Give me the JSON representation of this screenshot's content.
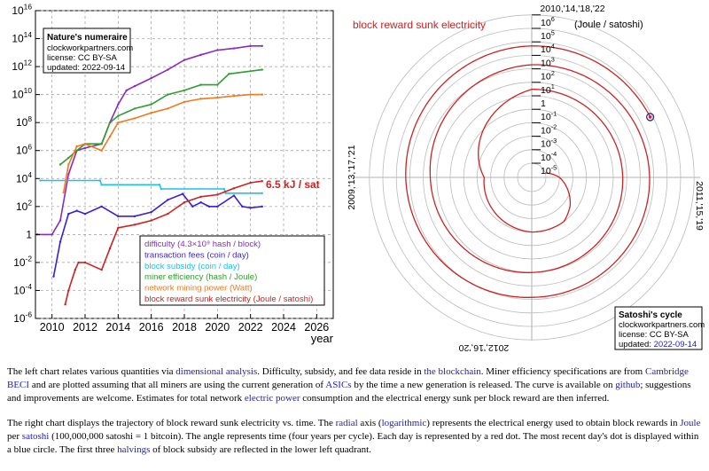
{
  "chart_data": [
    {
      "type": "line",
      "title": "",
      "xlabel": "year",
      "ylabel": "",
      "xlim": [
        2009,
        2027
      ],
      "ylim": [
        1e-06,
        1e+16
      ],
      "y_scale": "log",
      "x_ticks": [
        "2010",
        "2012",
        "2014",
        "2016",
        "2018",
        "2020",
        "2022",
        "2024",
        "2026"
      ],
      "y_ticks": [
        {
          "base": "10",
          "exp": "16"
        },
        {
          "base": "10",
          "exp": "14"
        },
        {
          "base": "10",
          "exp": "12"
        },
        {
          "base": "10",
          "exp": "10"
        },
        {
          "base": "10",
          "exp": "8"
        },
        {
          "base": "10",
          "exp": "6"
        },
        {
          "base": "10",
          "exp": "4"
        },
        {
          "base": "10",
          "exp": "2"
        },
        {
          "base": "1",
          "exp": ""
        },
        {
          "base": "10",
          "exp": "-2"
        },
        {
          "base": "10",
          "exp": "-4"
        },
        {
          "base": "10",
          "exp": "-6"
        }
      ],
      "grid": true,
      "annotation": "6.5 kJ / sat",
      "legend_position": "bottom-right",
      "series": [
        {
          "name": "difficulty (4.3×10⁹ hash / block)",
          "color": "#8a2bbb",
          "x": [
            2009.1,
            2010.0,
            2010.5,
            2011.0,
            2011.5,
            2012.0,
            2013.0,
            2013.5,
            2014.0,
            2014.5,
            2015.0,
            2016.0,
            2017.0,
            2018.0,
            2019.0,
            2020.0,
            2021.0,
            2022.0,
            2022.7
          ],
          "y": [
            1,
            1,
            10,
            20000.0,
            1000000.0,
            1500000.0,
            3000000.0,
            100000000.0,
            2000000000.0,
            20000000000.0,
            40000000000.0,
            150000000000.0,
            600000000000.0,
            3000000000000.0,
            7000000000000.0,
            15000000000000.0,
            20000000000000.0,
            30000000000000.0,
            30000000000000.0
          ]
        },
        {
          "name": "transaction fees (coin / day)",
          "color": "#3a1fd6",
          "x": [
            2010.1,
            2010.5,
            2011.0,
            2011.5,
            2012.0,
            2013.0,
            2014.0,
            2015.0,
            2016.0,
            2017.0,
            2017.9,
            2018.5,
            2019.0,
            2019.5,
            2020.0,
            2021.0,
            2021.5,
            2022.0,
            2022.7
          ],
          "y": [
            0.001,
            0.3,
            30,
            50,
            30,
            100,
            20,
            20,
            40,
            300,
            800,
            100,
            200,
            100,
            100,
            600,
            100,
            80,
            100
          ]
        },
        {
          "name": "block subsidy (coin / day)",
          "color": "#1fbfee",
          "x": [
            2009.3,
            2012.9,
            2013.0,
            2016.5,
            2016.6,
            2020.4,
            2020.5,
            2022.7
          ],
          "y": [
            7200,
            7200,
            3600,
            3600,
            1800,
            1800,
            900,
            900
          ]
        },
        {
          "name": "miner efficiency (hash / Joule)",
          "color": "#2e9e2e",
          "x": [
            2010.5,
            2011.0,
            2011.5,
            2012.0,
            2013.0,
            2013.5,
            2014.0,
            2015.0,
            2016.0,
            2017.0,
            2018.0,
            2019.0,
            2020.0,
            2020.7,
            2022.7
          ],
          "y": [
            100000.0,
            300000.0,
            1000000.0,
            3000000.0,
            3000000.0,
            100000000.0,
            300000000.0,
            1000000000.0,
            2000000000.0,
            10000000000.0,
            20000000000.0,
            50000000000.0,
            50000000000.0,
            300000000000.0,
            600000000000.0
          ]
        },
        {
          "name": "network mining power (Watt)",
          "color": "#ef7a1f",
          "x": [
            2010.7,
            2011.0,
            2011.5,
            2012.0,
            2013.0,
            2013.5,
            2014.0,
            2015.0,
            2016.0,
            2017.0,
            2018.0,
            2019.0,
            2020.0,
            2021.0,
            2022.0,
            2022.7
          ],
          "y": [
            1000.0,
            100000.0,
            2000000.0,
            3000000.0,
            1000000.0,
            10000000.0,
            100000000.0,
            200000000.0,
            500000000.0,
            1000000000.0,
            3000000000.0,
            5000000000.0,
            6000000000.0,
            8000000000.0,
            10000000000.0,
            10000000000.0
          ]
        },
        {
          "name": "block reward sunk electricity (Joule / satoshi)",
          "color": "#cc2222",
          "x": [
            2010.8,
            2011.0,
            2011.4,
            2011.6,
            2012.0,
            2013.0,
            2013.5,
            2014.0,
            2015.0,
            2016.0,
            2017.0,
            2018.0,
            2019.0,
            2020.0,
            2021.0,
            2022.0,
            2022.7
          ],
          "y": [
            1e-05,
            0.0001,
            0.003,
            0.01,
            0.01,
            0.003,
            0.1,
            3,
            5,
            10,
            30,
            200,
            500,
            700,
            2000,
            5000,
            6500
          ]
        }
      ],
      "info_box": {
        "title": "Nature's numeraire",
        "lines": [
          "clockworkpartners.com",
          "license: CC BY-SA",
          "updated: 2022-09-14"
        ]
      }
    },
    {
      "type": "line",
      "projection": "polar",
      "title": "block reward sunk electricity",
      "radial_unit": "(Joule / satoshi)",
      "radial_scale": "log",
      "radial_ticks": [
        {
          "base": "10",
          "exp": "6"
        },
        {
          "base": "10",
          "exp": "5"
        },
        {
          "base": "10",
          "exp": "4"
        },
        {
          "base": "10",
          "exp": "3"
        },
        {
          "base": "10",
          "exp": "2"
        },
        {
          "base": "10",
          "exp": "1"
        },
        {
          "base": "1",
          "exp": ""
        },
        {
          "base": "10",
          "exp": "-1"
        },
        {
          "base": "10",
          "exp": "-2"
        },
        {
          "base": "10",
          "exp": "-3"
        },
        {
          "base": "10",
          "exp": "-4"
        },
        {
          "base": "10",
          "exp": "-5"
        }
      ],
      "angle_labels": {
        "top": "2010,'14,'18,'22",
        "right": "2011,'15,'19",
        "bottom": "2012,'16,'20",
        "left": "2009,'13,'17,'21"
      },
      "series_color": "#cc2222",
      "latest_marker_color": "#2a2aa0",
      "info_box": {
        "title": "Satoshi's cycle",
        "lines": [
          "clockworkpartners.com",
          "license: CC BY-SA"
        ],
        "updated_prefix": "updated:",
        "updated_date": "2022-09-14"
      }
    }
  ],
  "description": {
    "p1": [
      {
        "t": "The left chart relates various quantities via "
      },
      {
        "t": "dimensional analysis",
        "link": true
      },
      {
        "t": ". Difficulty, subsidy, and fee data reside in "
      },
      {
        "t": "the blockchain",
        "link": true
      },
      {
        "t": ". Miner efficiency specifications are from "
      },
      {
        "t": "Cambridge BECI",
        "link": true
      },
      {
        "t": " and are plotted assuming that all miners are using the current generation of "
      },
      {
        "t": "ASICs",
        "link": true
      },
      {
        "t": " by the time a new generation is released. The curve is available on "
      },
      {
        "t": "github",
        "link": true
      },
      {
        "t": "; suggestions and improvements are welcome. Estimates for total network "
      },
      {
        "t": "electric power",
        "link": true
      },
      {
        "t": " consumption and the electrical energy sunk per block reward are then inferred."
      }
    ],
    "p2": [
      {
        "t": "The right chart displays the trajectory of block reward sunk electricity vs. time. The "
      },
      {
        "t": "radial",
        "link": true
      },
      {
        "t": " axis ("
      },
      {
        "t": "logarithmic",
        "link": true
      },
      {
        "t": ") represents the electrical energy used to obtain block rewards in "
      },
      {
        "t": "Joule",
        "link": true
      },
      {
        "t": " per "
      },
      {
        "t": "satoshi",
        "link": true
      },
      {
        "t": " (100,000,000 satoshi = 1 bitcoin). The angle represents time (four years per cycle). Each day is represented by a red dot. The most recent day's dot is displayed within a blue circle. The first three "
      },
      {
        "t": "halvings",
        "link": true
      },
      {
        "t": " of block subsidy are reflected in the lower left quadrant."
      }
    ]
  }
}
